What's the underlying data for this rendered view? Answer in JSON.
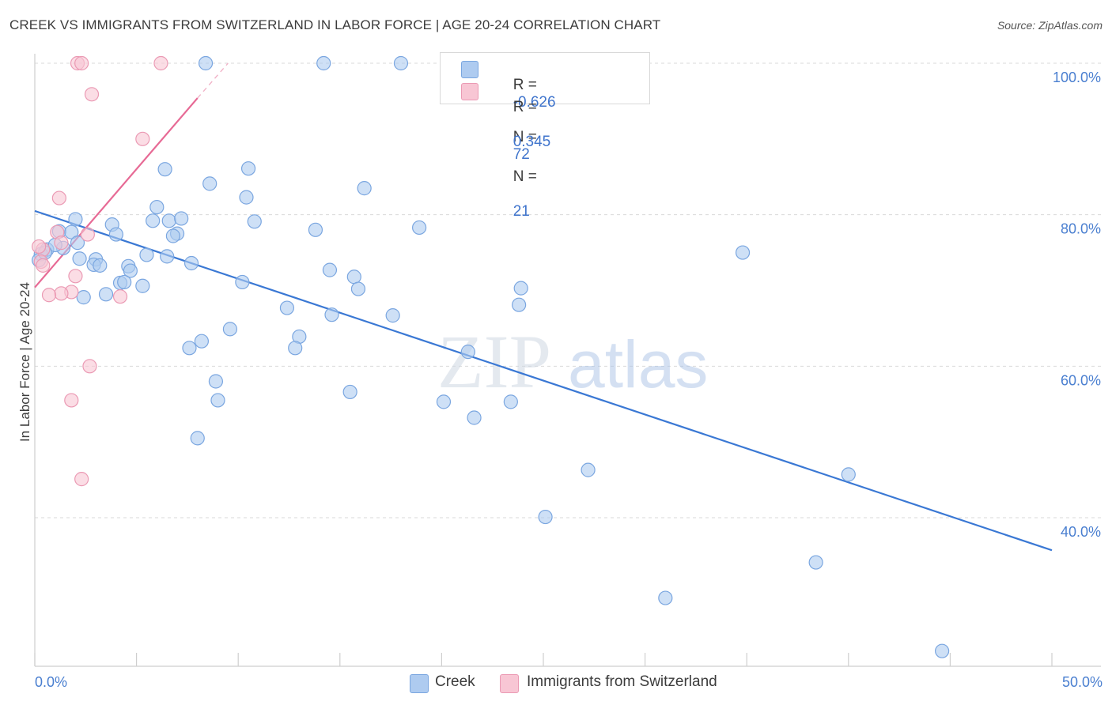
{
  "title": "CREEK VS IMMIGRANTS FROM SWITZERLAND IN LABOR FORCE | AGE 20-24 CORRELATION CHART",
  "source": "Source: ZipAtlas.com",
  "watermark": {
    "zip": "ZIP",
    "atlas": "atlas"
  },
  "legend": {
    "row1": {
      "r_label": "R =",
      "r_value": "-0.626",
      "n_label": "N =",
      "n_value": "72"
    },
    "row2": {
      "r_label": "R =",
      "r_value": "0.345",
      "n_label": "N =",
      "n_value": "21"
    }
  },
  "bottom_legend": {
    "creek": "Creek",
    "swiss": "Immigrants from Switzerland"
  },
  "colors": {
    "creek_fill": "#aecbf0",
    "creek_stroke": "#7aa6e0",
    "creek_line": "#3a78d4",
    "swiss_fill": "#f8c6d4",
    "swiss_stroke": "#eb9ab4",
    "swiss_line": "#e76a95",
    "grid": "#d9d9d9",
    "tick_text": "#4a7fd0"
  },
  "chart_data": {
    "type": "scatter",
    "title": "CREEK VS IMMIGRANTS FROM SWITZERLAND IN LABOR FORCE | AGE 20-24 CORRELATION CHART",
    "xlabel": "",
    "ylabel": "In Labor Force | Age 20-24",
    "xlim": [
      0,
      50
    ],
    "ylim": [
      20,
      102
    ],
    "x_tick_labels": [
      "0.0%",
      "50.0%"
    ],
    "y_ticks": [
      40,
      60,
      80,
      100
    ],
    "y_tick_labels": [
      "40.0%",
      "60.0%",
      "80.0%",
      "100.0%"
    ],
    "grid": true,
    "series": [
      {
        "name": "Creek",
        "r": -0.626,
        "n": 72,
        "trend": {
          "x0": 0,
          "y0": 80.5,
          "x1": 50,
          "y1": 35.7
        },
        "points": [
          [
            8.4,
            100
          ],
          [
            14.2,
            100
          ],
          [
            18.0,
            100
          ],
          [
            6.4,
            86.0
          ],
          [
            10.5,
            86.1
          ],
          [
            8.6,
            84.1
          ],
          [
            16.2,
            83.5
          ],
          [
            10.4,
            82.3
          ],
          [
            6.0,
            81.0
          ],
          [
            2.0,
            79.4
          ],
          [
            3.8,
            78.7
          ],
          [
            6.6,
            79.2
          ],
          [
            7.2,
            79.5
          ],
          [
            5.8,
            79.2
          ],
          [
            10.8,
            79.1
          ],
          [
            13.8,
            78.0
          ],
          [
            18.9,
            78.3
          ],
          [
            1.2,
            77.8
          ],
          [
            1.8,
            77.7
          ],
          [
            4.0,
            77.4
          ],
          [
            7.0,
            77.5
          ],
          [
            6.8,
            77.2
          ],
          [
            2.1,
            76.3
          ],
          [
            1.4,
            75.6
          ],
          [
            0.6,
            75.4
          ],
          [
            0.3,
            74.8
          ],
          [
            5.5,
            74.7
          ],
          [
            6.5,
            74.5
          ],
          [
            2.2,
            74.2
          ],
          [
            3.0,
            74.1
          ],
          [
            2.9,
            73.4
          ],
          [
            3.2,
            73.3
          ],
          [
            4.6,
            73.2
          ],
          [
            7.7,
            73.6
          ],
          [
            4.7,
            72.6
          ],
          [
            14.5,
            72.7
          ],
          [
            15.7,
            71.8
          ],
          [
            10.2,
            71.1
          ],
          [
            4.2,
            71.0
          ],
          [
            4.4,
            71.1
          ],
          [
            5.3,
            70.6
          ],
          [
            15.9,
            70.2
          ],
          [
            23.9,
            70.3
          ],
          [
            2.4,
            69.1
          ],
          [
            3.5,
            69.5
          ],
          [
            23.8,
            68.1
          ],
          [
            12.4,
            67.7
          ],
          [
            14.6,
            66.8
          ],
          [
            17.6,
            66.7
          ],
          [
            9.6,
            64.9
          ],
          [
            13.0,
            63.9
          ],
          [
            8.2,
            63.3
          ],
          [
            7.6,
            62.4
          ],
          [
            12.8,
            62.4
          ],
          [
            21.3,
            61.9
          ],
          [
            8.9,
            58.0
          ],
          [
            15.5,
            56.6
          ],
          [
            9.0,
            55.5
          ],
          [
            20.1,
            55.3
          ],
          [
            23.4,
            55.3
          ],
          [
            21.6,
            53.2
          ],
          [
            8.0,
            50.5
          ],
          [
            34.8,
            75.0
          ],
          [
            27.2,
            46.3
          ],
          [
            40.0,
            45.7
          ],
          [
            25.1,
            40.1
          ],
          [
            38.4,
            34.1
          ],
          [
            31.0,
            29.4
          ],
          [
            44.6,
            22.4
          ],
          [
            0.2,
            74.0
          ],
          [
            1.0,
            76.0
          ],
          [
            0.5,
            75.0
          ]
        ]
      },
      {
        "name": "Immigrants from Switzerland",
        "r": 0.345,
        "n": 21,
        "trend": {
          "x0": 0,
          "y0": 70.4,
          "x1": 8.0,
          "y1": 95.4
        },
        "trend_dashed": {
          "x0": 8.0,
          "y0": 95.4,
          "x1": 9.5,
          "y1": 100.0
        },
        "points": [
          [
            2.1,
            100
          ],
          [
            2.3,
            100
          ],
          [
            6.2,
            100
          ],
          [
            2.8,
            95.9
          ],
          [
            5.3,
            90.0
          ],
          [
            1.2,
            82.2
          ],
          [
            2.6,
            77.4
          ],
          [
            1.1,
            77.7
          ],
          [
            1.3,
            76.3
          ],
          [
            0.4,
            75.4
          ],
          [
            0.3,
            73.8
          ],
          [
            0.4,
            73.3
          ],
          [
            2.0,
            71.9
          ],
          [
            1.8,
            69.8
          ],
          [
            1.3,
            69.6
          ],
          [
            0.7,
            69.4
          ],
          [
            4.2,
            69.2
          ],
          [
            2.7,
            60.0
          ],
          [
            1.8,
            55.5
          ],
          [
            2.3,
            45.1
          ],
          [
            0.2,
            75.8
          ]
        ]
      }
    ]
  }
}
